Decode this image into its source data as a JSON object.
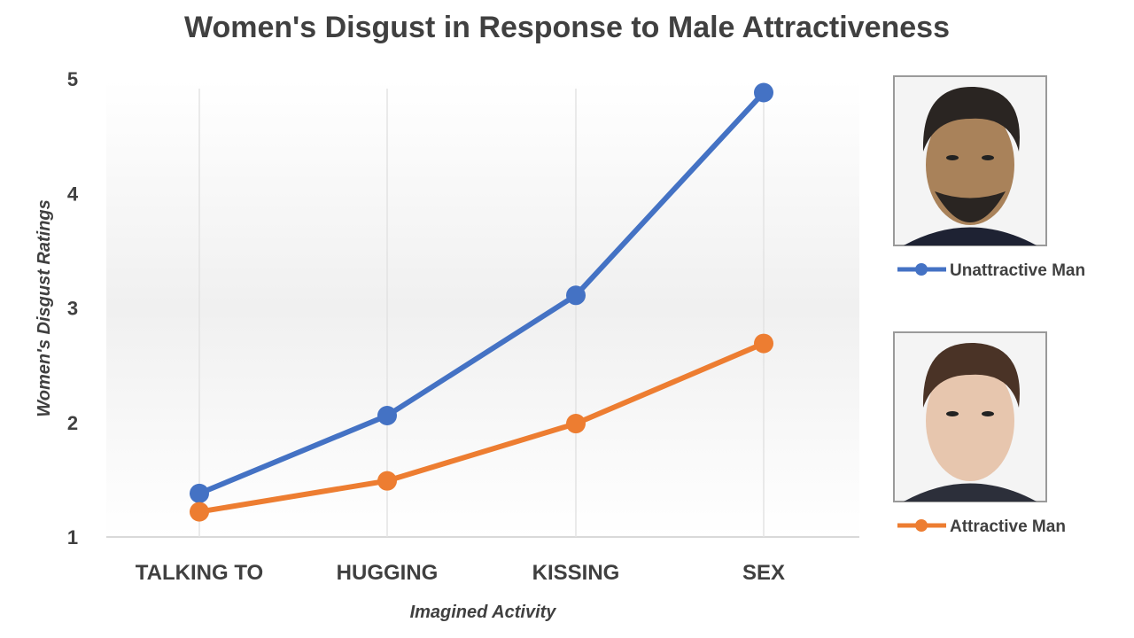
{
  "chart_data": {
    "type": "line",
    "title": "Women's Disgust in Response to Male Attractiveness",
    "xlabel": "Imagined Activity",
    "ylabel": "Women's Disgust Ratings",
    "categories": [
      "TALKING TO",
      "HUGGING",
      "KISSING",
      "SEX"
    ],
    "ylim": [
      1,
      5
    ],
    "yticks": [
      "1",
      "2",
      "3",
      "4",
      "5"
    ],
    "grid": "vertical",
    "legend": "right",
    "series": [
      {
        "name": "Unattractive Man",
        "color": "#4472C4",
        "values": [
          1.38,
          2.06,
          3.11,
          4.88
        ],
        "icon": "face-photo-unattractive"
      },
      {
        "name": "Attractive Man",
        "color": "#ED7D31",
        "values": [
          1.22,
          1.49,
          1.99,
          2.69
        ],
        "icon": "face-photo-attractive"
      }
    ]
  }
}
